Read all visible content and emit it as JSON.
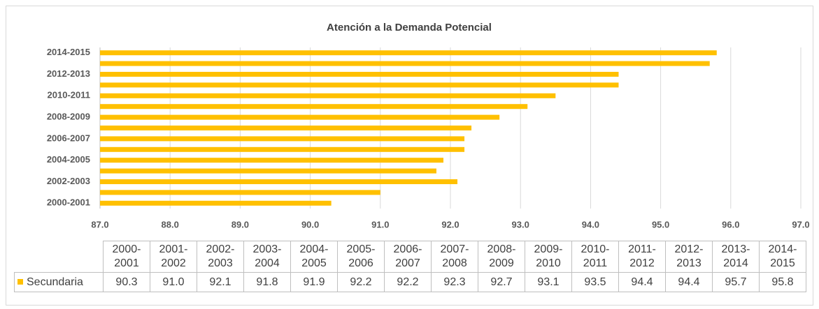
{
  "chart_data": {
    "type": "bar",
    "orientation": "horizontal",
    "title": "Atención a la Demanda Potencial",
    "categories": [
      "2000-2001",
      "2001-2002",
      "2002-2003",
      "2003-2004",
      "2004-2005",
      "2005-2006",
      "2006-2007",
      "2007-2008",
      "2008-2009",
      "2009-2010",
      "2010-2011",
      "2011-2012",
      "2012-2013",
      "2013-2014",
      "2014-2015"
    ],
    "series": [
      {
        "name": "Secundaria",
        "color": "#ffc000",
        "values": [
          90.3,
          91.0,
          92.1,
          91.8,
          91.9,
          92.2,
          92.2,
          92.3,
          92.7,
          93.1,
          93.5,
          94.4,
          94.4,
          95.7,
          95.8
        ],
        "value_labels": [
          "90.3",
          "91.0",
          "92.1",
          "91.8",
          "91.9",
          "92.2",
          "92.2",
          "92.3",
          "92.7",
          "93.1",
          "93.5",
          "94.4",
          "94.4",
          "95.7",
          "95.8"
        ]
      }
    ],
    "xlim": [
      87,
      97
    ],
    "xticks": [
      {
        "value": 87,
        "label": "87.0"
      },
      {
        "value": 88,
        "label": "88.0"
      },
      {
        "value": 89,
        "label": "89.0"
      },
      {
        "value": 90,
        "label": "90.0"
      },
      {
        "value": 91,
        "label": "91.0"
      },
      {
        "value": 92,
        "label": "92.0"
      },
      {
        "value": 93,
        "label": "93.0"
      },
      {
        "value": 94,
        "label": "94.0"
      },
      {
        "value": 95,
        "label": "95.0"
      },
      {
        "value": 96,
        "label": "96.0"
      },
      {
        "value": 97,
        "label": "97.0"
      }
    ],
    "grid": true,
    "data_table": true
  }
}
